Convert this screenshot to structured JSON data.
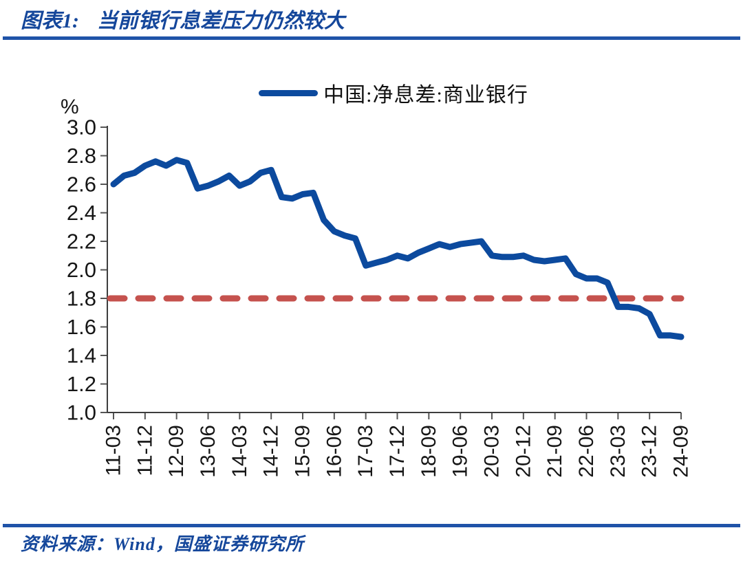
{
  "header": {
    "figure_label": "图表1:",
    "title": "当前银行息差压力仍然较大"
  },
  "footer": {
    "source": "资料来源：Wind，国盛证券研究所"
  },
  "theme": {
    "title_blue": "#15479B",
    "rule_blue": "#1F53A8",
    "axis_color": "#3d3d3d",
    "tick_color": "#555555",
    "label_color": "#161616"
  },
  "chart_data": {
    "type": "line",
    "title": "",
    "xlabel": "",
    "ylabel": "%",
    "ylim": [
      1.0,
      3.0
    ],
    "ytick_labels": [
      "3.0",
      "2.8",
      "2.6",
      "2.4",
      "2.2",
      "2.0",
      "1.8",
      "1.6",
      "1.4",
      "1.2",
      "1.0"
    ],
    "x": [
      "11-03",
      "11-06",
      "11-09",
      "11-12",
      "12-03",
      "12-06",
      "12-09",
      "12-12",
      "13-03",
      "13-06",
      "13-09",
      "13-12",
      "14-03",
      "14-06",
      "14-09",
      "14-12",
      "15-03",
      "15-06",
      "15-09",
      "15-12",
      "16-03",
      "16-06",
      "16-09",
      "16-12",
      "17-03",
      "17-06",
      "17-09",
      "17-12",
      "18-03",
      "18-06",
      "18-09",
      "18-12",
      "19-03",
      "19-06",
      "19-09",
      "19-12",
      "20-03",
      "20-06",
      "20-09",
      "20-12",
      "21-03",
      "21-06",
      "21-09",
      "21-12",
      "22-03",
      "22-06",
      "22-09",
      "22-12",
      "23-03",
      "23-06",
      "23-09",
      "23-12",
      "24-03",
      "24-06",
      "24-09"
    ],
    "xtick_labels": [
      "11-03",
      "11-12",
      "12-09",
      "13-06",
      "14-03",
      "14-12",
      "15-09",
      "16-06",
      "17-03",
      "17-12",
      "18-09",
      "19-06",
      "20-03",
      "20-12",
      "21-09",
      "22-06",
      "23-03",
      "23-12",
      "24-09"
    ],
    "series": [
      {
        "name": "中国:净息差:商业银行",
        "color": "#0C4A9E",
        "values": [
          2.6,
          2.66,
          2.68,
          2.73,
          2.76,
          2.73,
          2.77,
          2.75,
          2.57,
          2.59,
          2.62,
          2.66,
          2.59,
          2.62,
          2.68,
          2.7,
          2.51,
          2.5,
          2.53,
          2.54,
          2.35,
          2.27,
          2.24,
          2.22,
          2.03,
          2.05,
          2.07,
          2.1,
          2.08,
          2.12,
          2.15,
          2.18,
          2.16,
          2.18,
          2.19,
          2.2,
          2.1,
          2.09,
          2.09,
          2.1,
          2.07,
          2.06,
          2.07,
          2.08,
          1.97,
          1.94,
          1.94,
          1.91,
          1.74,
          1.74,
          1.73,
          1.69,
          1.54,
          1.54,
          1.53
        ]
      }
    ],
    "reference_line": {
      "value": 1.8,
      "color": "#C5524E",
      "style": "dashed"
    },
    "legend_position": "top-center",
    "grid": false
  }
}
